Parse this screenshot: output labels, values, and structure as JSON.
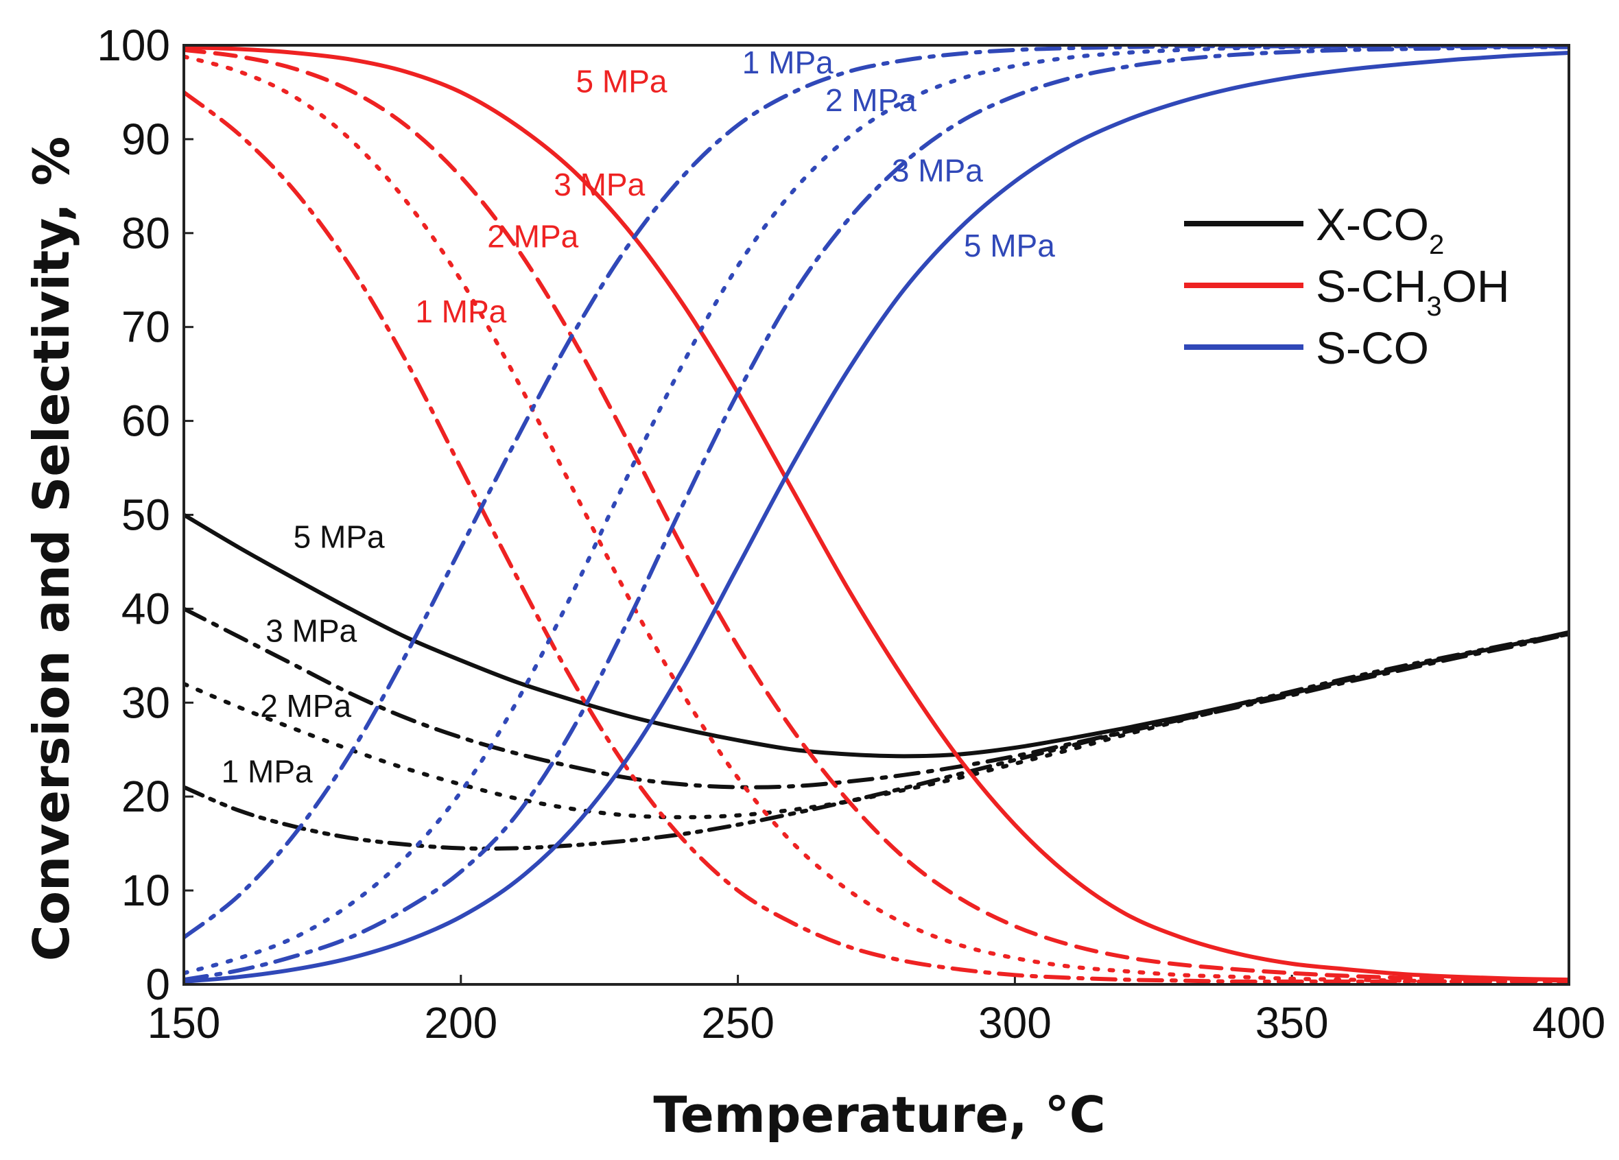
{
  "chart_data": {
    "type": "line",
    "title": "",
    "xlabel": "Temperature, °C",
    "ylabel": "Conversion and Selectivity, %",
    "xlim": [
      150,
      400
    ],
    "ylim": [
      0,
      100
    ],
    "xticks": [
      150,
      200,
      250,
      300,
      350,
      400
    ],
    "yticks": [
      0,
      10,
      20,
      30,
      40,
      50,
      60,
      70,
      80,
      90,
      100
    ],
    "colors": {
      "X-CO2": "#111111",
      "S-CH3OH": "#ee2222",
      "S-CO": "#3048b8"
    },
    "legend": {
      "position": "right",
      "entries": [
        {
          "label": "X-CO",
          "subscript": "2",
          "suffix": "",
          "color": "#111111"
        },
        {
          "label": "S-CH",
          "subscript": "3",
          "suffix": "OH",
          "color": "#ee2222"
        },
        {
          "label": "S-CO",
          "subscript": "",
          "suffix": "",
          "color": "#3048b8"
        }
      ]
    },
    "series": [
      {
        "name": "X-CO2 5 MPa",
        "group": "X-CO2",
        "pressure": "5 MPa",
        "dash": "solid",
        "x": [
          150,
          160,
          170,
          180,
          190,
          200,
          210,
          220,
          230,
          240,
          250,
          260,
          270,
          280,
          290,
          300,
          310,
          320,
          330,
          340,
          350,
          360,
          370,
          380,
          390,
          400
        ],
        "y": [
          50,
          46.5,
          43.2,
          40,
          37,
          34.5,
          32.2,
          30.3,
          28.6,
          27.2,
          26,
          25,
          24.5,
          24.3,
          24.5,
          25.2,
          26.2,
          27.3,
          28.5,
          29.8,
          31,
          32.4,
          33.7,
          35,
          36.2,
          37.5
        ]
      },
      {
        "name": "X-CO2 3 MPa",
        "group": "X-CO2",
        "pressure": "3 MPa",
        "dash": "dashdot",
        "x": [
          150,
          160,
          170,
          180,
          190,
          200,
          210,
          220,
          230,
          240,
          250,
          260,
          270,
          280,
          290,
          300,
          310,
          320,
          330,
          340,
          350,
          360,
          370,
          380,
          390,
          400
        ],
        "y": [
          40,
          37,
          34,
          31,
          28.4,
          26.3,
          24.6,
          23.2,
          22,
          21.3,
          21,
          21.1,
          21.6,
          22.3,
          23.2,
          24.3,
          25.6,
          26.9,
          28.2,
          29.5,
          30.8,
          32.2,
          33.5,
          34.8,
          36,
          37.3
        ]
      },
      {
        "name": "X-CO2 2 MPa",
        "group": "X-CO2",
        "pressure": "2 MPa",
        "dash": "dotted",
        "x": [
          150,
          160,
          170,
          180,
          190,
          200,
          210,
          220,
          230,
          240,
          250,
          260,
          270,
          280,
          290,
          300,
          310,
          320,
          330,
          340,
          350,
          360,
          370,
          380,
          390,
          400
        ],
        "y": [
          32,
          29.5,
          27.2,
          25,
          23,
          21.3,
          19.8,
          18.7,
          18,
          17.8,
          18,
          18.6,
          19.5,
          20.7,
          22,
          23.5,
          25,
          26.6,
          28.1,
          29.6,
          31,
          32.4,
          33.7,
          35,
          36.2,
          37.3
        ]
      },
      {
        "name": "X-CO2 1 MPa",
        "group": "X-CO2",
        "pressure": "1 MPa",
        "dash": "dashdotdot",
        "x": [
          150,
          160,
          170,
          180,
          190,
          200,
          210,
          220,
          230,
          240,
          250,
          260,
          270,
          280,
          290,
          300,
          310,
          320,
          330,
          340,
          350,
          360,
          370,
          380,
          390,
          400
        ],
        "y": [
          21,
          18.5,
          16.8,
          15.6,
          14.9,
          14.5,
          14.5,
          14.8,
          15.3,
          16,
          17,
          18.2,
          19.5,
          20.9,
          22.4,
          23.9,
          25.4,
          26.9,
          28.4,
          29.8,
          31.2,
          32.6,
          33.9,
          35.1,
          36.3,
          37.4
        ]
      },
      {
        "name": "S-CH3OH 5 MPa",
        "group": "S-CH3OH",
        "pressure": "5 MPa",
        "dash": "solid",
        "x": [
          150,
          160,
          170,
          180,
          190,
          200,
          210,
          220,
          230,
          240,
          250,
          260,
          270,
          280,
          290,
          300,
          310,
          320,
          330,
          340,
          350,
          360,
          370,
          380,
          390,
          400
        ],
        "y": [
          99.8,
          99.6,
          99.2,
          98.5,
          97.2,
          95,
          91.5,
          86.8,
          80.5,
          72.5,
          63,
          52.5,
          42,
          32.5,
          24,
          17,
          11.5,
          7.5,
          5,
          3.3,
          2.2,
          1.6,
          1.1,
          0.8,
          0.6,
          0.5
        ]
      },
      {
        "name": "S-CH3OH 3 MPa",
        "group": "S-CH3OH",
        "pressure": "3 MPa",
        "dash": "dashed",
        "x": [
          150,
          160,
          170,
          180,
          190,
          200,
          210,
          220,
          230,
          240,
          250,
          260,
          270,
          280,
          290,
          300,
          310,
          320,
          330,
          340,
          350,
          360,
          370,
          380,
          390,
          400
        ],
        "y": [
          99.5,
          98.8,
          97.5,
          95.2,
          91.5,
          86,
          78.5,
          69,
          58,
          46.5,
          36,
          27,
          19.5,
          13.5,
          9.2,
          6.2,
          4.2,
          2.9,
          2.1,
          1.6,
          1.2,
          0.9,
          0.7,
          0.6,
          0.5,
          0.4
        ]
      },
      {
        "name": "S-CH3OH 2 MPa",
        "group": "S-CH3OH",
        "pressure": "2 MPa",
        "dash": "dotted",
        "x": [
          150,
          160,
          170,
          180,
          190,
          200,
          210,
          220,
          230,
          240,
          250,
          260,
          270,
          280,
          290,
          300,
          310,
          320,
          330,
          340,
          350,
          360,
          370,
          380,
          390,
          400
        ],
        "y": [
          98.8,
          97.2,
          94.5,
          90,
          83.5,
          75,
          64.5,
          53,
          41.5,
          31,
          22,
          15,
          10,
          6.5,
          4.2,
          2.8,
          1.9,
          1.4,
          1,
          0.8,
          0.6,
          0.5,
          0.4,
          0.3,
          0.3,
          0.3
        ]
      },
      {
        "name": "S-CH3OH 1 MPa",
        "group": "S-CH3OH",
        "pressure": "1 MPa",
        "dash": "dashdot",
        "x": [
          150,
          160,
          170,
          180,
          190,
          200,
          210,
          220,
          230,
          240,
          250,
          260,
          270,
          280,
          290,
          300,
          310,
          320,
          330,
          340,
          350,
          360,
          370,
          380,
          390,
          400
        ],
        "y": [
          95,
          90.5,
          84.5,
          76.5,
          66.5,
          55,
          43.5,
          32.5,
          23,
          15.5,
          10,
          6.5,
          4,
          2.5,
          1.6,
          1,
          0.7,
          0.5,
          0.4,
          0.3,
          0.3,
          0.3,
          0.3,
          0.3,
          0.3,
          0.3
        ]
      },
      {
        "name": "S-CO 5 MPa",
        "group": "S-CO",
        "pressure": "5 MPa",
        "dash": "solid",
        "x": [
          150,
          160,
          170,
          180,
          190,
          200,
          210,
          220,
          230,
          240,
          250,
          260,
          270,
          280,
          290,
          300,
          310,
          320,
          330,
          340,
          350,
          360,
          370,
          380,
          390,
          400
        ],
        "y": [
          0.3,
          0.8,
          1.6,
          2.8,
          4.6,
          7.2,
          11,
          16.5,
          24,
          33.5,
          44.5,
          55.5,
          65.5,
          74,
          80.5,
          85.5,
          89.3,
          92,
          94,
          95.5,
          96.6,
          97.4,
          98,
          98.5,
          98.9,
          99.2
        ]
      },
      {
        "name": "S-CO 3 MPa",
        "group": "S-CO",
        "pressure": "3 MPa",
        "dash": "dashdot",
        "x": [
          150,
          160,
          170,
          180,
          190,
          200,
          210,
          220,
          230,
          240,
          250,
          260,
          270,
          280,
          290,
          300,
          310,
          320,
          330,
          340,
          350,
          360,
          370,
          380,
          390,
          400
        ],
        "y": [
          0.5,
          1.5,
          3,
          5,
          8,
          12,
          18,
          27,
          38.5,
          51,
          63,
          73.5,
          81.5,
          87.5,
          91.8,
          94.6,
          96.5,
          97.7,
          98.5,
          99,
          99.3,
          99.5,
          99.6,
          99.7,
          99.8,
          99.8
        ]
      },
      {
        "name": "S-CO 2 MPa",
        "group": "S-CO",
        "pressure": "2 MPa",
        "dash": "dotted",
        "x": [
          150,
          160,
          170,
          180,
          190,
          200,
          210,
          220,
          230,
          240,
          250,
          260,
          270,
          280,
          290,
          300,
          310,
          320,
          330,
          340,
          350,
          360,
          370,
          380,
          390,
          400
        ],
        "y": [
          1.2,
          2.8,
          5,
          8.5,
          13.5,
          20.5,
          30,
          41.5,
          54,
          66,
          76.5,
          84.5,
          90.2,
          94,
          96.4,
          97.8,
          98.7,
          99.2,
          99.5,
          99.7,
          99.8,
          99.8,
          99.9,
          99.9,
          99.9,
          99.9
        ]
      },
      {
        "name": "S-CO 1 MPa",
        "group": "S-CO",
        "pressure": "1 MPa",
        "dash": "dashdot",
        "x": [
          150,
          160,
          170,
          180,
          190,
          200,
          210,
          220,
          230,
          240,
          250,
          260,
          270,
          280,
          290,
          300,
          310,
          320,
          330,
          340,
          350,
          360,
          370,
          380,
          390,
          400
        ],
        "y": [
          5,
          9.5,
          16,
          24.5,
          35,
          46.5,
          58,
          69,
          78.5,
          86,
          91.5,
          95,
          97.2,
          98.4,
          99.1,
          99.5,
          99.7,
          99.8,
          99.9,
          99.9,
          99.9,
          99.9,
          99.9,
          99.9,
          99.9,
          99.9
        ]
      }
    ],
    "annotations": [
      {
        "text": "5 MPa",
        "group": "S-CH3OH",
        "x": 229,
        "y": 95
      },
      {
        "text": "3 MPa",
        "group": "S-CH3OH",
        "x": 225,
        "y": 84
      },
      {
        "text": "2 MPa",
        "group": "S-CH3OH",
        "x": 213,
        "y": 78.5
      },
      {
        "text": "1 MPa",
        "group": "S-CH3OH",
        "x": 200,
        "y": 70.5
      },
      {
        "text": "1 MPa",
        "group": "S-CO",
        "x": 259,
        "y": 97
      },
      {
        "text": "2 MPa",
        "group": "S-CO",
        "x": 274,
        "y": 93
      },
      {
        "text": "3 MPa",
        "group": "S-CO",
        "x": 286,
        "y": 85.5
      },
      {
        "text": "5 MPa",
        "group": "S-CO",
        "x": 299,
        "y": 77.5
      },
      {
        "text": "5 MPa",
        "group": "X-CO2",
        "x": 178,
        "y": 46.5
      },
      {
        "text": "3 MPa",
        "group": "X-CO2",
        "x": 173,
        "y": 36.5
      },
      {
        "text": "2 MPa",
        "group": "X-CO2",
        "x": 172,
        "y": 28.5
      },
      {
        "text": "1 MPa",
        "group": "X-CO2",
        "x": 165,
        "y": 21.5
      }
    ]
  }
}
